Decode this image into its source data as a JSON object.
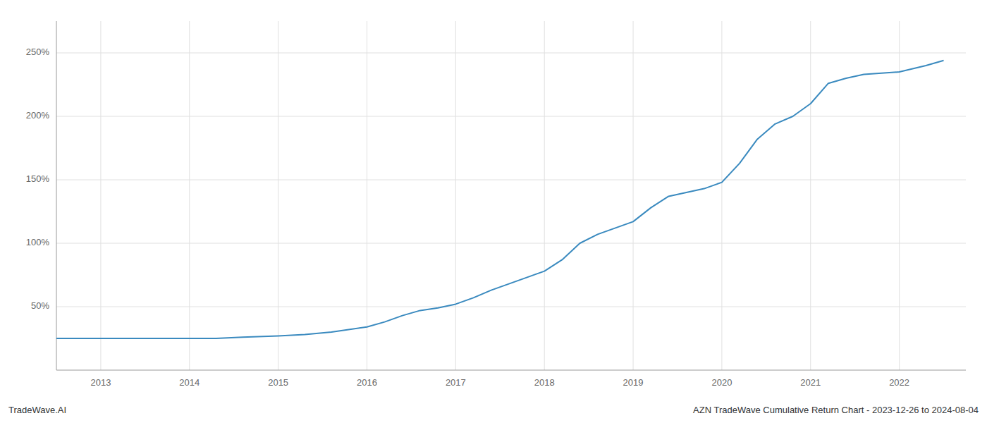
{
  "chart_data": {
    "type": "line",
    "title": "AZN TradeWave Cumulative Return Chart - 2023-12-26 to 2024-08-04",
    "annotations": [
      "TradeWave.AI"
    ],
    "color": "#3a8abf",
    "grid": true,
    "x": [
      2012.5,
      2013.0,
      2013.3,
      2013.6,
      2014.0,
      2014.3,
      2014.6,
      2015.0,
      2015.3,
      2015.6,
      2016.0,
      2016.2,
      2016.4,
      2016.6,
      2016.8,
      2017.0,
      2017.2,
      2017.4,
      2017.6,
      2017.8,
      2018.0,
      2018.2,
      2018.4,
      2018.6,
      2018.8,
      2019.0,
      2019.2,
      2019.4,
      2019.6,
      2019.8,
      2020.0,
      2020.2,
      2020.4,
      2020.6,
      2020.8,
      2021.0,
      2021.2,
      2021.4,
      2021.6,
      2021.8,
      2022.0,
      2022.3,
      2022.5
    ],
    "values": [
      25,
      25,
      25,
      25,
      25,
      25,
      26,
      27,
      28,
      30,
      34,
      38,
      43,
      47,
      49,
      52,
      57,
      63,
      68,
      73,
      78,
      87,
      100,
      107,
      112,
      117,
      128,
      137,
      140,
      143,
      148,
      163,
      182,
      194,
      200,
      210,
      226,
      230,
      233,
      234,
      235,
      240,
      244
    ],
    "xlim": [
      2012.5,
      2022.75
    ],
    "ylim": [
      0,
      275
    ],
    "xticks": [
      2013,
      2014,
      2015,
      2016,
      2017,
      2018,
      2019,
      2020,
      2021,
      2022
    ],
    "yticks": [
      {
        "value": 50,
        "label": "50%"
      },
      {
        "value": 100,
        "label": "100%"
      },
      {
        "value": 150,
        "label": "150%"
      },
      {
        "value": 200,
        "label": "200%"
      },
      {
        "value": 250,
        "label": "250%"
      }
    ]
  }
}
